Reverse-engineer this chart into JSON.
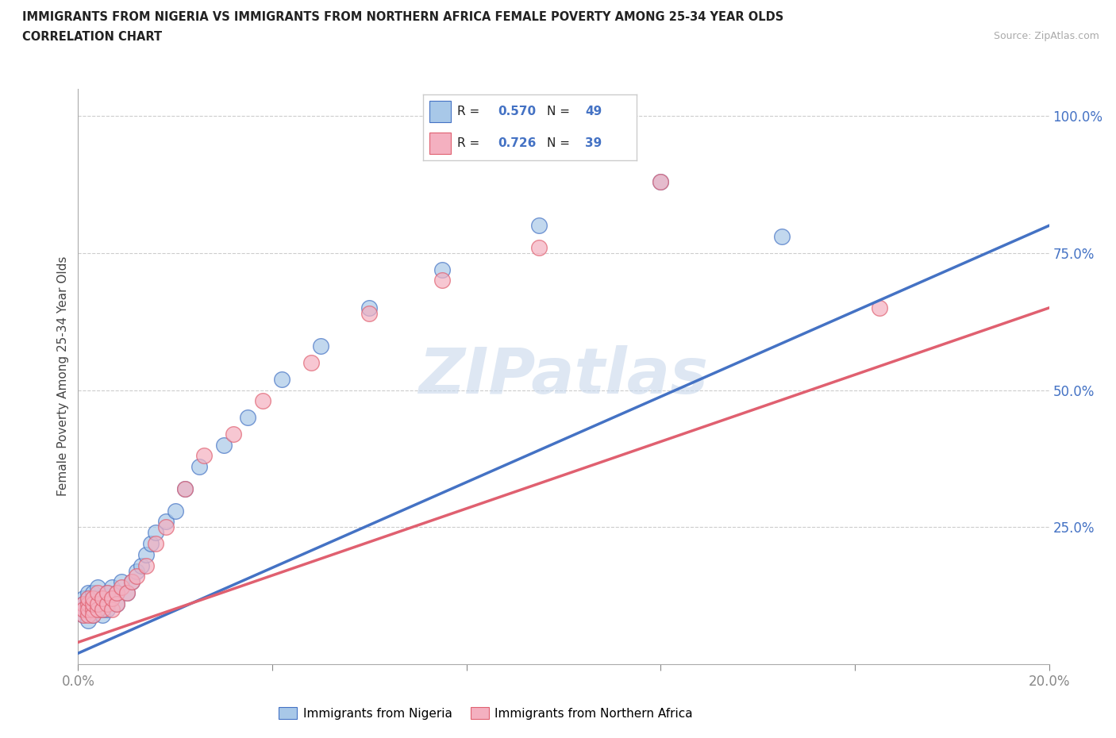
{
  "title_line1": "IMMIGRANTS FROM NIGERIA VS IMMIGRANTS FROM NORTHERN AFRICA FEMALE POVERTY AMONG 25-34 YEAR OLDS",
  "title_line2": "CORRELATION CHART",
  "source_text": "Source: ZipAtlas.com",
  "ylabel": "Female Poverty Among 25-34 Year Olds",
  "xlim": [
    0.0,
    0.2
  ],
  "ylim": [
    0.0,
    1.05
  ],
  "xticks": [
    0.0,
    0.04,
    0.08,
    0.12,
    0.16,
    0.2
  ],
  "xtick_labels": [
    "0.0%",
    "",
    "",
    "",
    "",
    "20.0%"
  ],
  "ytick_labels": [
    "",
    "25.0%",
    "50.0%",
    "75.0%",
    "100.0%"
  ],
  "yticks": [
    0.0,
    0.25,
    0.5,
    0.75,
    1.0
  ],
  "nigeria_R": 0.57,
  "nigeria_N": 49,
  "northafrica_R": 0.726,
  "northafrica_N": 39,
  "nigeria_color": "#a8c8e8",
  "northafrica_color": "#f4b0c0",
  "nigeria_line_color": "#4472c4",
  "northafrica_line_color": "#e06070",
  "legend_R_color": "#4472c4",
  "watermark_color": "#c8d8ec",
  "nigeria_scatter_x": [
    0.001,
    0.001,
    0.001,
    0.001,
    0.002,
    0.002,
    0.002,
    0.002,
    0.002,
    0.003,
    0.003,
    0.003,
    0.003,
    0.004,
    0.004,
    0.004,
    0.004,
    0.005,
    0.005,
    0.005,
    0.005,
    0.006,
    0.006,
    0.006,
    0.007,
    0.007,
    0.008,
    0.008,
    0.009,
    0.01,
    0.011,
    0.012,
    0.013,
    0.014,
    0.015,
    0.016,
    0.018,
    0.02,
    0.022,
    0.025,
    0.03,
    0.035,
    0.042,
    0.05,
    0.06,
    0.075,
    0.095,
    0.12,
    0.145
  ],
  "nigeria_scatter_y": [
    0.12,
    0.1,
    0.09,
    0.11,
    0.1,
    0.12,
    0.08,
    0.11,
    0.13,
    0.1,
    0.11,
    0.09,
    0.13,
    0.1,
    0.12,
    0.11,
    0.14,
    0.09,
    0.11,
    0.1,
    0.12,
    0.11,
    0.13,
    0.1,
    0.12,
    0.14,
    0.11,
    0.13,
    0.15,
    0.13,
    0.15,
    0.17,
    0.18,
    0.2,
    0.22,
    0.24,
    0.26,
    0.28,
    0.32,
    0.36,
    0.4,
    0.45,
    0.52,
    0.58,
    0.65,
    0.72,
    0.8,
    0.88,
    0.78
  ],
  "northafrica_scatter_x": [
    0.001,
    0.001,
    0.001,
    0.002,
    0.002,
    0.002,
    0.002,
    0.003,
    0.003,
    0.003,
    0.003,
    0.004,
    0.004,
    0.004,
    0.005,
    0.005,
    0.006,
    0.006,
    0.007,
    0.007,
    0.008,
    0.008,
    0.009,
    0.01,
    0.011,
    0.012,
    0.014,
    0.016,
    0.018,
    0.022,
    0.026,
    0.032,
    0.038,
    0.048,
    0.06,
    0.075,
    0.095,
    0.12,
    0.165
  ],
  "northafrica_scatter_y": [
    0.09,
    0.11,
    0.1,
    0.09,
    0.11,
    0.1,
    0.12,
    0.1,
    0.09,
    0.11,
    0.12,
    0.1,
    0.11,
    0.13,
    0.1,
    0.12,
    0.11,
    0.13,
    0.1,
    0.12,
    0.11,
    0.13,
    0.14,
    0.13,
    0.15,
    0.16,
    0.18,
    0.22,
    0.25,
    0.32,
    0.38,
    0.42,
    0.48,
    0.55,
    0.64,
    0.7,
    0.76,
    0.88,
    0.65
  ],
  "nigeria_line_x": [
    0.0,
    0.2
  ],
  "nigeria_line_y": [
    0.02,
    0.8
  ],
  "northafrica_line_x": [
    0.0,
    0.2
  ],
  "northafrica_line_y": [
    0.04,
    0.65
  ]
}
